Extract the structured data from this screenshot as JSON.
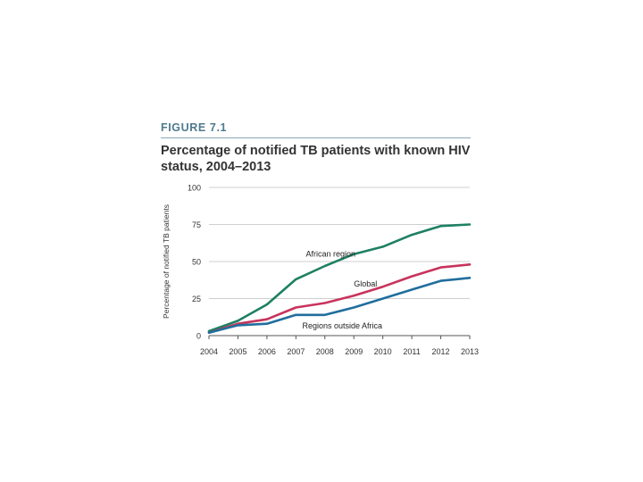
{
  "figure": {
    "label": "FIGURE 7.1",
    "title": "Percentage of notified TB patients with known HIV status, 2004–2013"
  },
  "chart_data": {
    "type": "line",
    "title": "Percentage of notified TB patients with known HIV status, 2004–2013",
    "xlabel": "",
    "ylabel": "Percentage of notified TB patients",
    "x": [
      2004,
      2005,
      2006,
      2007,
      2008,
      2009,
      2010,
      2011,
      2012,
      2013
    ],
    "yticks": [
      0,
      25,
      50,
      75,
      100
    ],
    "ylim": [
      0,
      100
    ],
    "grid": true,
    "series": [
      {
        "name": "African region",
        "color": "#1e8063",
        "values": [
          3,
          10,
          21,
          38,
          47,
          55,
          60,
          68,
          74,
          75
        ]
      },
      {
        "name": "Global",
        "color": "#c8335d",
        "values": [
          2,
          8,
          11,
          19,
          22,
          27,
          33,
          40,
          46,
          48
        ]
      },
      {
        "name": "Regions outside Africa",
        "color": "#206e9e",
        "values": [
          2,
          7,
          8,
          14,
          14,
          19,
          25,
          31,
          37,
          39
        ]
      }
    ]
  }
}
